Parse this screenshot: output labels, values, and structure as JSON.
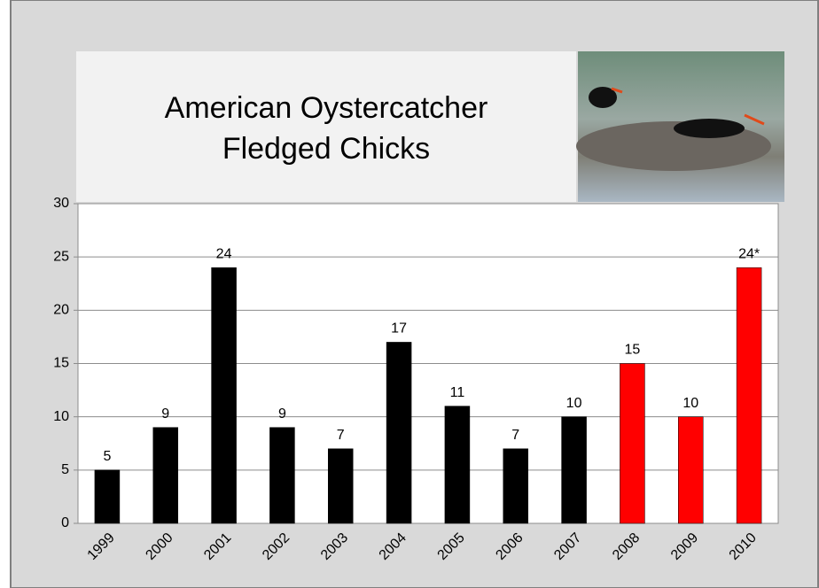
{
  "chart_data": {
    "type": "bar",
    "title": [
      "American Oystercatcher",
      "Fledged Chicks"
    ],
    "categories": [
      "1999",
      "2000",
      "2001",
      "2002",
      "2003",
      "2004",
      "2005",
      "2006",
      "2007",
      "2008",
      "2009",
      "2010"
    ],
    "values": [
      5,
      9,
      24,
      9,
      7,
      17,
      11,
      7,
      10,
      15,
      10,
      24
    ],
    "value_labels": [
      "5",
      "9",
      "24",
      "9",
      "7",
      "17",
      "11",
      "7",
      "10",
      "15",
      "10",
      "24*"
    ],
    "colors": [
      "#000000",
      "#000000",
      "#000000",
      "#000000",
      "#000000",
      "#000000",
      "#000000",
      "#000000",
      "#000000",
      "#ff0000",
      "#ff0000",
      "#ff0000"
    ],
    "ylim": [
      0,
      30
    ],
    "yticks": [
      0,
      5,
      10,
      15,
      20,
      25,
      30
    ],
    "grid": true
  }
}
